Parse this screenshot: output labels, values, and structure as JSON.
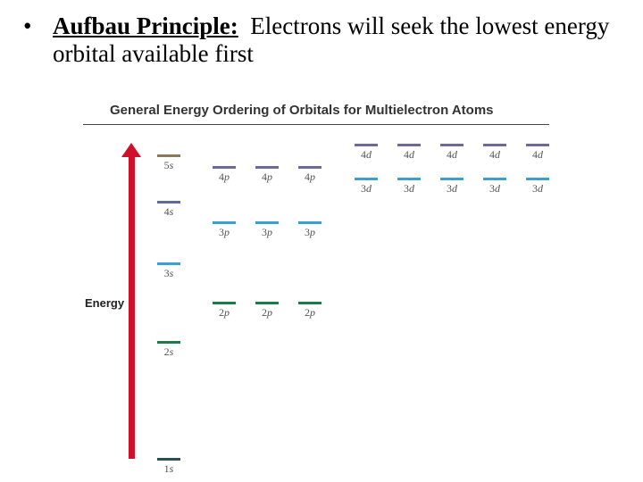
{
  "slide": {
    "bullet": "•",
    "term": "Aufbau Principle:",
    "description": "Electrons will seek the lowest energy orbital available first"
  },
  "diagram": {
    "title": "General Energy Ordering of Orbitals for Multielectron Atoms",
    "axis_label": "Energy",
    "arrow_color": "#d0102a",
    "colors": {
      "s5": "#8b7a5a",
      "s4": "#5e6aa0",
      "s3": "#3aa0d0",
      "s2": "#1e7a48",
      "s1": "#2a4e5a",
      "p4": "#6a6a9c",
      "p3": "#3aa0d0",
      "p2": "#1e7a48",
      "d4": "#6a6a9c",
      "d3": "#3aa0d0"
    },
    "orbitals": {
      "s1": {
        "n": "1",
        "l": "s"
      },
      "s2": {
        "n": "2",
        "l": "s"
      },
      "s3": {
        "n": "3",
        "l": "s"
      },
      "s4": {
        "n": "4",
        "l": "s"
      },
      "s5": {
        "n": "5",
        "l": "s"
      },
      "p2": {
        "n": "2",
        "l": "p"
      },
      "p3": {
        "n": "3",
        "l": "p"
      },
      "p4": {
        "n": "4",
        "l": "p"
      },
      "d3": {
        "n": "3",
        "l": "d"
      },
      "d4": {
        "n": "4",
        "l": "d"
      }
    }
  }
}
